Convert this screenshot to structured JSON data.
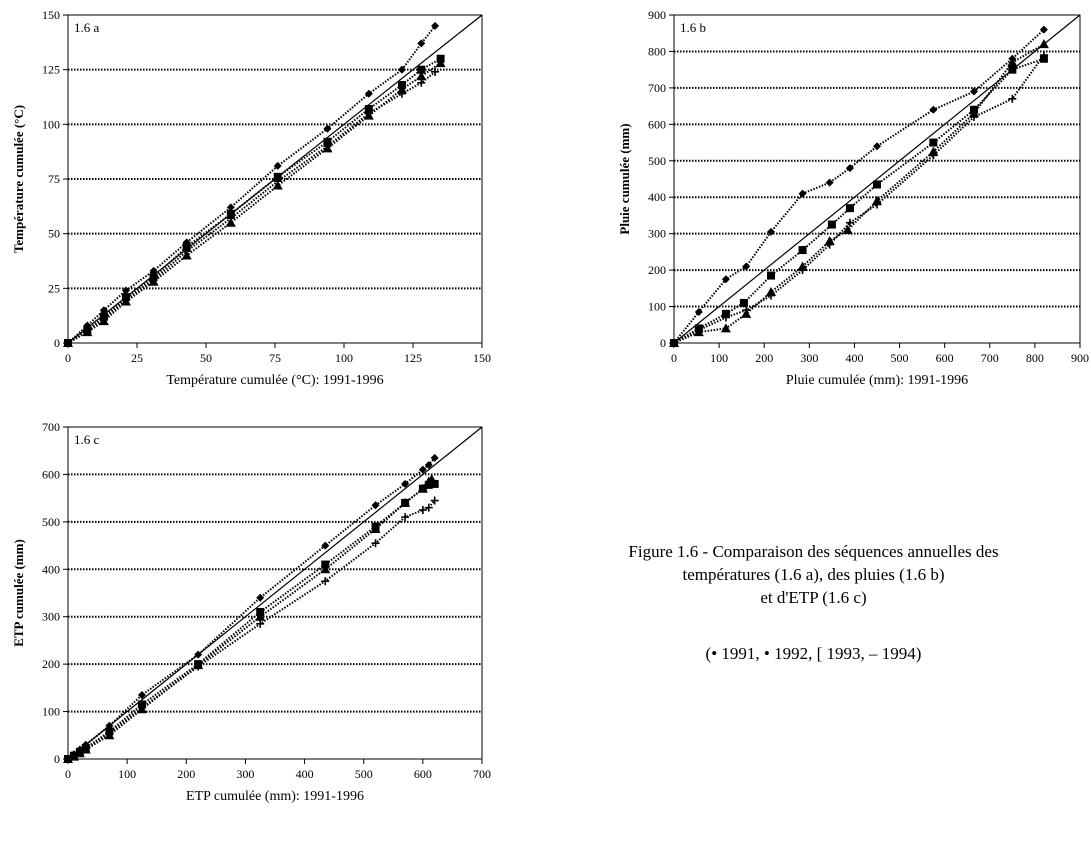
{
  "caption": {
    "lines": [
      "Figure 1.6 - Comparaison des séquences annuelles des",
      "températures (1.6 a), des pluies (1.6 b)",
      "et d'ETP (1.6 c)"
    ],
    "legend_text": "(• 1991, • 1992, [ 1993, – 1994)"
  },
  "chart_data": [
    {
      "id": "a",
      "type": "scatter",
      "panel_label": "1.6 a",
      "xlabel": "Température cumulée (°C): 1991-1996",
      "ylabel": "Température cumulée (°C)",
      "xlim": [
        0,
        150
      ],
      "ylim": [
        0,
        150
      ],
      "xticks": [
        0,
        25,
        50,
        75,
        100,
        125,
        150
      ],
      "yticks": [
        0,
        25,
        50,
        75,
        100,
        125,
        150
      ],
      "ygrid": "dotted",
      "reference_line": "y = x",
      "series": [
        {
          "marker": "diamond",
          "points": [
            [
              0,
              0
            ],
            [
              7,
              8
            ],
            [
              13,
              15
            ],
            [
              21,
              24
            ],
            [
              31,
              33
            ],
            [
              43,
              46
            ],
            [
              59,
              62
            ],
            [
              76,
              81
            ],
            [
              94,
              98
            ],
            [
              109,
              114
            ],
            [
              121,
              125
            ],
            [
              128,
              137
            ],
            [
              133,
              145
            ]
          ]
        },
        {
          "marker": "square",
          "points": [
            [
              0,
              0
            ],
            [
              7,
              6
            ],
            [
              13,
              12
            ],
            [
              21,
              21
            ],
            [
              31,
              30
            ],
            [
              43,
              44
            ],
            [
              59,
              59
            ],
            [
              76,
              76
            ],
            [
              94,
              92
            ],
            [
              109,
              107
            ],
            [
              121,
              118
            ],
            [
              128,
              125
            ],
            [
              135,
              130
            ]
          ]
        },
        {
          "marker": "triangle",
          "points": [
            [
              0,
              0
            ],
            [
              7,
              5
            ],
            [
              13,
              10
            ],
            [
              21,
              19
            ],
            [
              31,
              28
            ],
            [
              43,
              40
            ],
            [
              59,
              55
            ],
            [
              76,
              72
            ],
            [
              94,
              89
            ],
            [
              109,
              104
            ],
            [
              121,
              116
            ],
            [
              128,
              122
            ],
            [
              135,
              128
            ]
          ]
        },
        {
          "marker": "plus",
          "points": [
            [
              0,
              0
            ],
            [
              7,
              6
            ],
            [
              13,
              11
            ],
            [
              21,
              20
            ],
            [
              31,
              29
            ],
            [
              43,
              42
            ],
            [
              59,
              57
            ],
            [
              76,
              74
            ],
            [
              94,
              90
            ],
            [
              109,
              105
            ],
            [
              121,
              114
            ],
            [
              128,
              119
            ],
            [
              133,
              124
            ]
          ]
        }
      ]
    },
    {
      "id": "b",
      "type": "scatter",
      "panel_label": "1.6 b",
      "xlabel": "Pluie cumulée (mm): 1991-1996",
      "ylabel": "Pluie cumulée (mm)",
      "xlim": [
        0,
        900
      ],
      "ylim": [
        0,
        900
      ],
      "xticks": [
        0,
        100,
        200,
        300,
        400,
        500,
        600,
        700,
        800,
        900
      ],
      "yticks": [
        0,
        100,
        200,
        300,
        400,
        500,
        600,
        700,
        800,
        900
      ],
      "ygrid": "dotted",
      "reference_line": "y = x",
      "series": [
        {
          "marker": "diamond",
          "points": [
            [
              0,
              0
            ],
            [
              55,
              85
            ],
            [
              115,
              175
            ],
            [
              160,
              210
            ],
            [
              215,
              305
            ],
            [
              285,
              410
            ],
            [
              345,
              440
            ],
            [
              390,
              480
            ],
            [
              450,
              540
            ],
            [
              575,
              640
            ],
            [
              665,
              690
            ],
            [
              750,
              780
            ],
            [
              820,
              860
            ]
          ]
        },
        {
          "marker": "square",
          "points": [
            [
              0,
              0
            ],
            [
              55,
              40
            ],
            [
              115,
              80
            ],
            [
              155,
              110
            ],
            [
              215,
              185
            ],
            [
              285,
              255
            ],
            [
              350,
              325
            ],
            [
              390,
              370
            ],
            [
              450,
              435
            ],
            [
              575,
              550
            ],
            [
              665,
              640
            ],
            [
              750,
              750
            ],
            [
              820,
              780
            ]
          ]
        },
        {
          "marker": "triangle",
          "points": [
            [
              0,
              0
            ],
            [
              55,
              30
            ],
            [
              115,
              40
            ],
            [
              160,
              80
            ],
            [
              215,
              140
            ],
            [
              285,
              210
            ],
            [
              345,
              280
            ],
            [
              385,
              310
            ],
            [
              450,
              390
            ],
            [
              575,
              525
            ],
            [
              665,
              630
            ],
            [
              750,
              770
            ],
            [
              820,
              820
            ]
          ]
        },
        {
          "marker": "plus",
          "points": [
            [
              0,
              0
            ],
            [
              55,
              35
            ],
            [
              115,
              70
            ],
            [
              160,
              90
            ],
            [
              215,
              130
            ],
            [
              285,
              200
            ],
            [
              345,
              270
            ],
            [
              390,
              330
            ],
            [
              450,
              380
            ],
            [
              575,
              515
            ],
            [
              665,
              620
            ],
            [
              750,
              670
            ],
            [
              820,
              790
            ]
          ]
        }
      ]
    },
    {
      "id": "c",
      "type": "scatter",
      "panel_label": "1.6 c",
      "xlabel": "ETP cumulée (mm): 1991-1996",
      "ylabel": "ETP cumulée (mm)",
      "xlim": [
        0,
        700
      ],
      "ylim": [
        0,
        700
      ],
      "xticks": [
        0,
        100,
        200,
        300,
        400,
        500,
        600,
        700
      ],
      "yticks": [
        0,
        100,
        200,
        300,
        400,
        500,
        600,
        700
      ],
      "ygrid": "dotted",
      "reference_line": "y = x",
      "series": [
        {
          "marker": "diamond",
          "points": [
            [
              0,
              0
            ],
            [
              10,
              10
            ],
            [
              20,
              20
            ],
            [
              30,
              30
            ],
            [
              70,
              70
            ],
            [
              125,
              135
            ],
            [
              220,
              220
            ],
            [
              325,
              340
            ],
            [
              435,
              450
            ],
            [
              520,
              535
            ],
            [
              570,
              580
            ],
            [
              600,
              610
            ],
            [
              610,
              620
            ],
            [
              620,
              635
            ]
          ]
        },
        {
          "marker": "square",
          "points": [
            [
              0,
              0
            ],
            [
              10,
              7
            ],
            [
              20,
              15
            ],
            [
              30,
              23
            ],
            [
              70,
              58
            ],
            [
              125,
              115
            ],
            [
              220,
              200
            ],
            [
              325,
              310
            ],
            [
              435,
              410
            ],
            [
              520,
              490
            ],
            [
              570,
              540
            ],
            [
              600,
              570
            ],
            [
              610,
              578
            ],
            [
              620,
              580
            ]
          ]
        },
        {
          "marker": "triangle",
          "points": [
            [
              0,
              0
            ],
            [
              10,
              5
            ],
            [
              20,
              12
            ],
            [
              30,
              20
            ],
            [
              70,
              50
            ],
            [
              125,
              105
            ],
            [
              220,
              198
            ],
            [
              325,
              300
            ],
            [
              435,
              400
            ],
            [
              520,
              485
            ],
            [
              570,
              540
            ],
            [
              600,
              570
            ],
            [
              610,
              585
            ],
            [
              615,
              590
            ]
          ]
        },
        {
          "marker": "plus",
          "points": [
            [
              0,
              0
            ],
            [
              10,
              6
            ],
            [
              20,
              13
            ],
            [
              30,
              22
            ],
            [
              70,
              55
            ],
            [
              125,
              108
            ],
            [
              220,
              195
            ],
            [
              325,
              285
            ],
            [
              435,
              375
            ],
            [
              520,
              455
            ],
            [
              570,
              510
            ],
            [
              600,
              525
            ],
            [
              610,
              530
            ],
            [
              620,
              545
            ]
          ]
        }
      ]
    }
  ]
}
